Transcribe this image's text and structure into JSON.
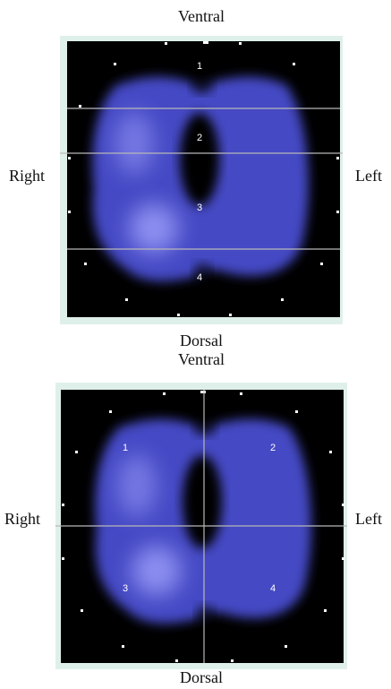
{
  "panels": [
    {
      "top_label": "Ventral",
      "bottom_label": "Dorsal",
      "left_label": "Right",
      "right_label": "Left",
      "regions": [
        "1",
        "2",
        "3",
        "4"
      ]
    },
    {
      "top_label": "Ventral",
      "bottom_label": "Dorsal",
      "left_label": "Right",
      "right_label": "Left",
      "regions": [
        "1",
        "2",
        "3",
        "4"
      ]
    }
  ]
}
